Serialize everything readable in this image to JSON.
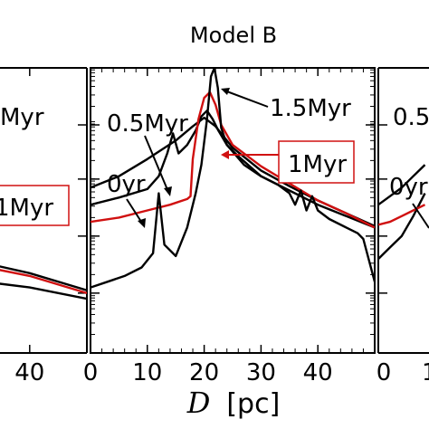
{
  "chart_data": {
    "type": "line",
    "title": "Model B",
    "xlabel_symbol": "D",
    "xlabel_unit": "[pc]",
    "xlim": [
      0,
      50
    ],
    "xticks": [
      "0",
      "10",
      "20",
      "30",
      "40"
    ],
    "left_panel": {
      "xticks_visible": [
        "40"
      ],
      "labels": [
        "Myr",
        "1Myr"
      ]
    },
    "right_panel": {
      "xticks_visible": [
        "0",
        "1"
      ],
      "labels": [
        "0.5",
        "0yr"
      ]
    },
    "annotations": {
      "t15": "1.5Myr",
      "t05": "0.5Myr",
      "t0": "0yr",
      "t1": "1Myr"
    },
    "colors": {
      "black": "#000000",
      "red": "#d01010"
    },
    "series": [
      {
        "name": "0yr",
        "color": "#000000",
        "x": [
          0,
          5,
          10,
          15,
          18,
          20,
          22,
          25,
          30,
          35,
          40,
          45,
          50
        ],
        "y": [
          0.58,
          0.62,
          0.68,
          0.745,
          0.795,
          0.825,
          0.795,
          0.72,
          0.64,
          0.585,
          0.535,
          0.49,
          0.445
        ]
      },
      {
        "name": "0.5Myr",
        "color": "#000000",
        "x": [
          0,
          5,
          10,
          12,
          13.5,
          14.5,
          15.5,
          17,
          18.5,
          19.5,
          20.5,
          21.5,
          22.5,
          24,
          27,
          30,
          35,
          40,
          45,
          50
        ],
        "y": [
          0.52,
          0.545,
          0.575,
          0.62,
          0.7,
          0.77,
          0.7,
          0.73,
          0.78,
          0.83,
          0.85,
          0.82,
          0.78,
          0.73,
          0.66,
          0.62,
          0.57,
          0.52,
          0.48,
          0.44
        ]
      },
      {
        "name": "1Myr",
        "color": "#d01010",
        "x": [
          0,
          5,
          10,
          14,
          17,
          17.6,
          18,
          19,
          20,
          21,
          22,
          23,
          25,
          30,
          35,
          40,
          45,
          50
        ],
        "y": [
          0.46,
          0.475,
          0.5,
          0.52,
          0.54,
          0.55,
          0.68,
          0.82,
          0.895,
          0.915,
          0.87,
          0.8,
          0.73,
          0.655,
          0.595,
          0.535,
          0.49,
          0.44
        ]
      },
      {
        "name": "1.5Myr",
        "color": "#000000",
        "x": [
          0,
          3,
          6,
          9,
          11,
          12,
          13,
          15,
          17,
          18.5,
          19.5,
          20.5,
          21.2,
          21.8,
          22.4,
          23,
          24,
          26,
          30,
          33,
          35,
          36,
          37,
          38,
          39,
          40,
          42,
          45,
          47,
          48,
          50
        ],
        "y": [
          0.23,
          0.25,
          0.27,
          0.3,
          0.35,
          0.56,
          0.38,
          0.34,
          0.44,
          0.56,
          0.66,
          0.82,
          0.97,
          1.0,
          0.93,
          0.79,
          0.73,
          0.69,
          0.62,
          0.59,
          0.56,
          0.52,
          0.57,
          0.5,
          0.55,
          0.5,
          0.47,
          0.44,
          0.42,
          0.4,
          0.25
        ]
      }
    ],
    "left_series": [
      {
        "name": "red",
        "color": "#d01010",
        "x": [
          0,
          20,
          40,
          50
        ],
        "y": [
          0.64,
          0.6,
          0.52,
          0.46
        ]
      },
      {
        "name": "black upper",
        "color": "#000000",
        "x": [
          0,
          20,
          40,
          50
        ],
        "y": [
          0.665,
          0.62,
          0.53,
          0.47
        ]
      },
      {
        "name": "black lower",
        "color": "#000000",
        "x": [
          0,
          20,
          40,
          50
        ],
        "y": [
          0.56,
          0.53,
          0.48,
          0.44
        ]
      }
    ],
    "right_series": [
      {
        "name": "black a",
        "color": "#000000",
        "x": [
          0,
          2,
          4,
          6,
          8
        ],
        "y": [
          0.33,
          0.37,
          0.41,
          0.48,
          0.56
        ]
      },
      {
        "name": "black b",
        "color": "#000000",
        "x": [
          0,
          2,
          4,
          6,
          8
        ],
        "y": [
          0.52,
          0.55,
          0.58,
          0.62,
          0.66
        ]
      },
      {
        "name": "red",
        "color": "#d01010",
        "x": [
          0,
          2,
          4,
          6,
          8
        ],
        "y": [
          0.45,
          0.46,
          0.48,
          0.5,
          0.52
        ]
      }
    ]
  }
}
